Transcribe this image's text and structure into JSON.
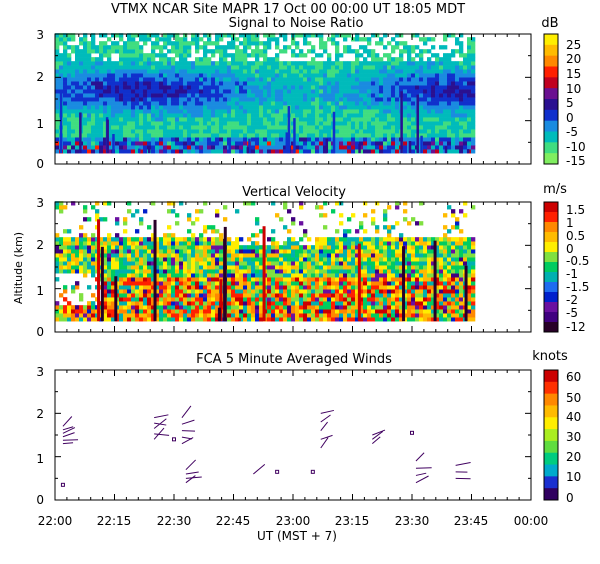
{
  "header": {
    "title": "VTMX   NCAR Site   MAPR 17 Oct 00   00:00 UT   18:05   MDT"
  },
  "colors": {
    "snr": [
      "#80ee60",
      "#40dd80",
      "#00bbbb",
      "#1a8be0",
      "#1030cc",
      "#2a1090",
      "#6a1090",
      "#c00020",
      "#ff2000",
      "#ff8800",
      "#ffbb00",
      "#ffee00"
    ],
    "velocity": [
      "#280028",
      "#400080",
      "#6a10a0",
      "#0020cc",
      "#1e6cf0",
      "#00b0b0",
      "#00cc60",
      "#80e040",
      "#ffee00",
      "#ffbb00",
      "#ff8800",
      "#ff2000",
      "#cc0000"
    ],
    "winds": [
      "#300060",
      "#1a30d0",
      "#00aacc",
      "#00cc80",
      "#60dd40",
      "#aaee20",
      "#ffee00",
      "#ffbb00",
      "#ff8800",
      "#ff3000",
      "#cc0000"
    ],
    "barb": "#400060"
  },
  "chart_data": [
    {
      "type": "heatmap",
      "title": "Signal to Noise Ratio",
      "units": "dB",
      "yticks": [
        "0",
        "1",
        "2",
        "3"
      ],
      "ylim": [
        0,
        3
      ],
      "xlim": [
        "22:00",
        "00:00"
      ],
      "colorbar_labels": [
        "25",
        "20",
        "15",
        "10",
        "5",
        "0",
        "-5",
        "-10",
        "-15"
      ]
    },
    {
      "type": "heatmap",
      "title": "Vertical Velocity",
      "units": "m/s",
      "ylabel": "Altitude (km)",
      "yticks": [
        "0",
        "1",
        "2",
        "3"
      ],
      "ylim": [
        0,
        3
      ],
      "xlim": [
        "22:00",
        "00:00"
      ],
      "colorbar_labels": [
        "1.5",
        "1",
        "0.5",
        "0",
        "-0.5",
        "-1",
        "-1.5",
        "-2",
        "-5",
        "-12"
      ]
    },
    {
      "type": "scatter",
      "title": "FCA 5 Minute Averaged Winds",
      "units": "knots",
      "yticks": [
        "0",
        "1",
        "2",
        "3"
      ],
      "ylim": [
        0,
        3
      ],
      "xlim": [
        "22:00",
        "00:00"
      ],
      "colorbar_labels": [
        "60",
        "50",
        "40",
        "30",
        "20",
        "10",
        "0"
      ],
      "xticks": [
        "22:00",
        "22:15",
        "22:30",
        "22:45",
        "23:00",
        "23:15",
        "23:30",
        "23:45",
        "00:00"
      ],
      "xlabel": "UT  (MST + 7)"
    }
  ]
}
